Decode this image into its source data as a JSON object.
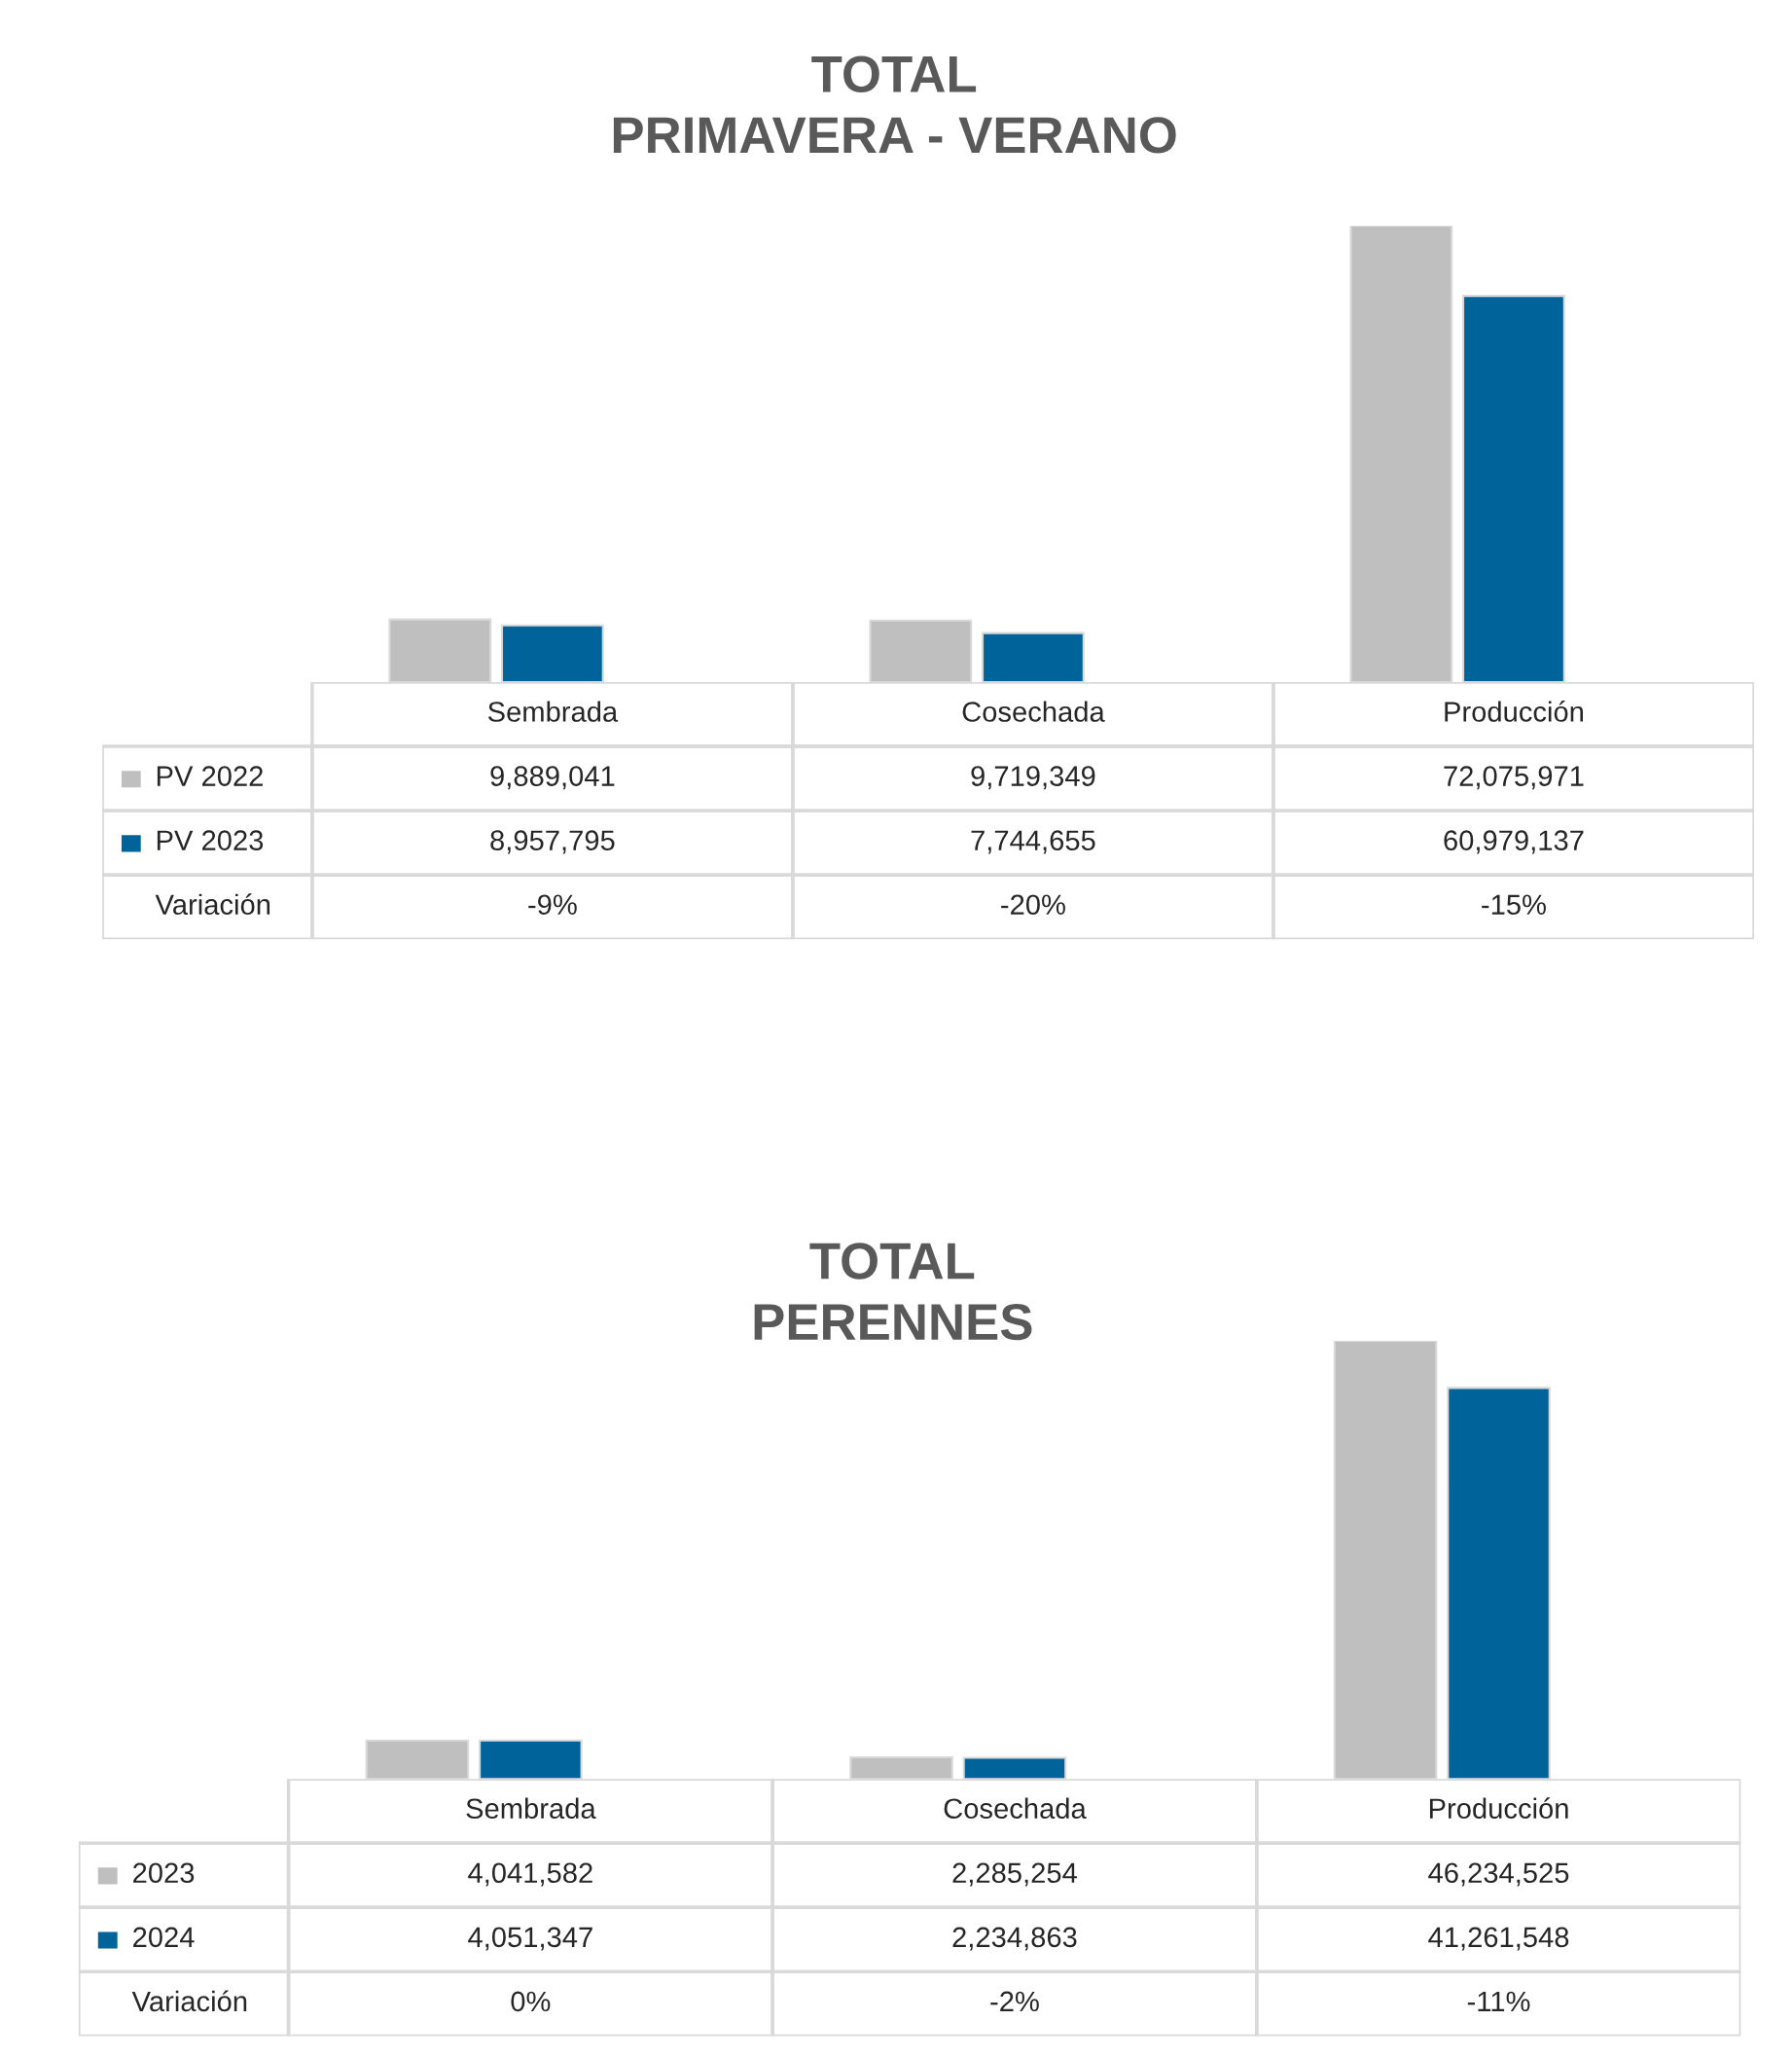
{
  "chart_data": [
    {
      "type": "bar",
      "title": "TOTAL\nPRIMAVERA - VERANO",
      "categories": [
        "Sembrada",
        "Cosechada",
        "Producción"
      ],
      "legend": "left",
      "series": [
        {
          "name": "PV 2022",
          "color": "#bfbfbf",
          "values": [
            9889041,
            9719349,
            72075971
          ],
          "value_labels": [
            "9,889,041",
            "9,719,349",
            "72,075,971"
          ]
        },
        {
          "name": "PV 2023",
          "color": "#00639a",
          "values": [
            8957795,
            7744655,
            60979137
          ],
          "value_labels": [
            "8,957,795",
            "7,744,655",
            "60,979,137"
          ]
        }
      ],
      "annotations": [
        "Variación",
        "-9%",
        "-20%",
        "-15%"
      ]
    },
    {
      "type": "bar",
      "title": "TOTAL\nPERENNES",
      "categories": [
        "Sembrada",
        "Cosechada",
        "Producción"
      ],
      "legend": "left",
      "series": [
        {
          "name": "2023",
          "color": "#bfbfbf",
          "values": [
            4041582,
            2285254,
            46234525
          ],
          "value_labels": [
            "4,041,582",
            "2,285,254",
            "46,234,525"
          ]
        },
        {
          "name": "2024",
          "color": "#00639a",
          "values": [
            4051347,
            2234863,
            41261548
          ],
          "value_labels": [
            "4,051,347",
            "2,234,863",
            "41,261,548"
          ]
        }
      ],
      "annotations": [
        "Variación",
        "0%",
        "-2%",
        "-11%"
      ]
    }
  ]
}
